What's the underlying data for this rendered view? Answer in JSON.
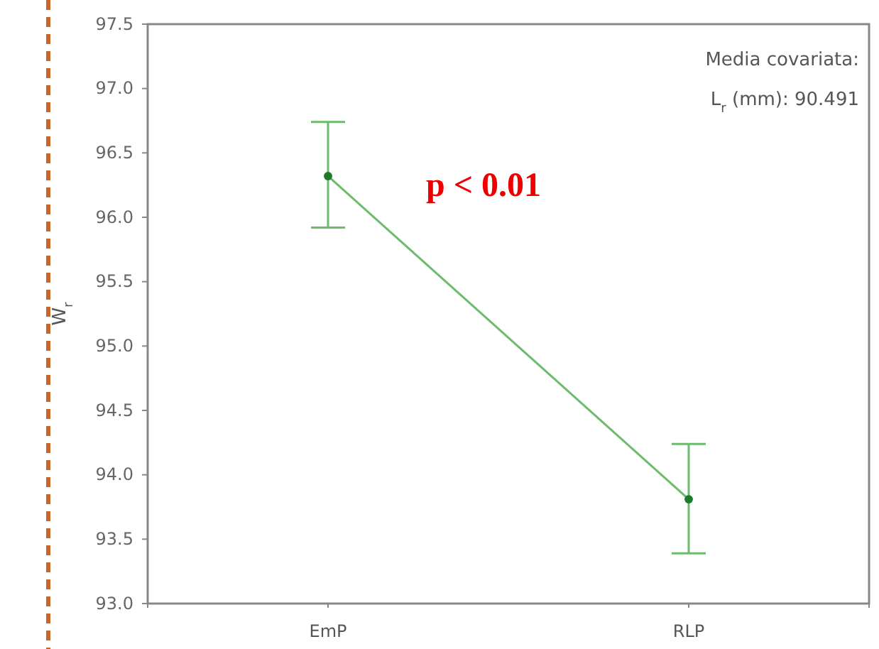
{
  "chart_data": {
    "type": "line",
    "ylabel": "W$_{r}$",
    "categories": [
      "EmP",
      "RLP"
    ],
    "series": [
      {
        "color": "#6dbb6d",
        "values": [
          96.32,
          93.81
        ],
        "errors": [
          [
            95.92,
            96.74
          ],
          [
            93.39,
            94.24
          ]
        ]
      }
    ],
    "ylim": [
      93.0,
      97.5
    ],
    "yticks": [
      {
        "value": 93,
        "label": "93.0"
      },
      {
        "value": 93.5,
        "label": "93.5"
      },
      {
        "value": 94,
        "label": "94.0"
      },
      {
        "value": 94.5,
        "label": "94.5"
      },
      {
        "value": 95,
        "label": "95.0"
      },
      {
        "value": 95.5,
        "label": "95.5"
      },
      {
        "value": 96,
        "label": "96.0"
      },
      {
        "value": 96.5,
        "label": "96.5"
      },
      {
        "value": 97,
        "label": "97.0"
      },
      {
        "value": 97.5,
        "label": "97.5"
      }
    ],
    "marker": "circle",
    "grid": false,
    "annotations": [
      "Media covariata:",
      "L$_{r}$ (mm): 90.491",
      "p < 0.01"
    ]
  }
}
